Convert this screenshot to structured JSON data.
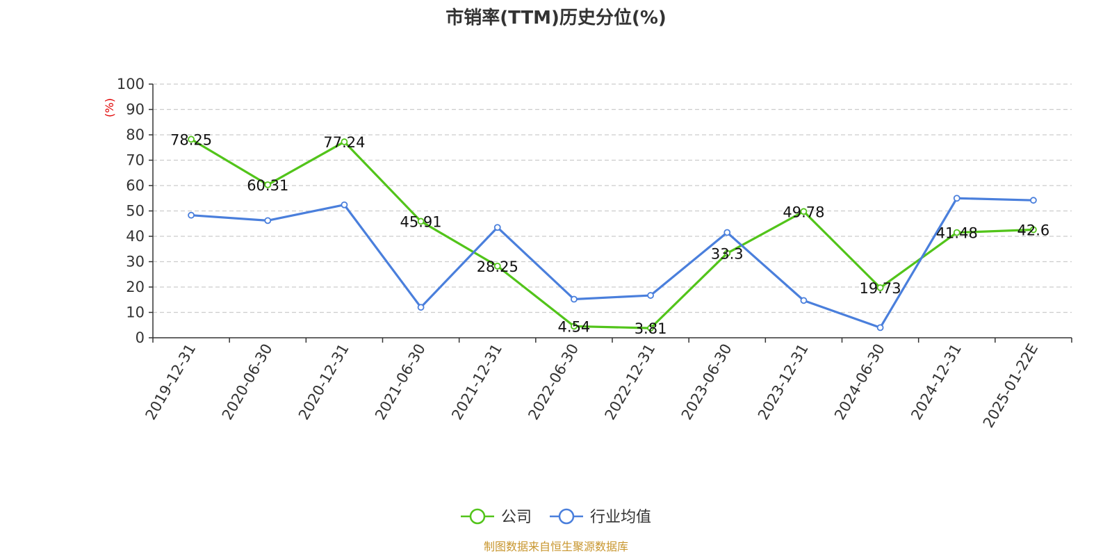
{
  "chart_data": {
    "type": "line",
    "title": "市销率(TTM)历史分位(%)",
    "y_unit": "(%)",
    "ylim": [
      0,
      100
    ],
    "y_ticks": [
      0,
      10,
      20,
      30,
      40,
      50,
      60,
      70,
      80,
      90,
      100
    ],
    "grid": true,
    "legend_position": "bottom",
    "categories": [
      "2019-12-31",
      "2020-06-30",
      "2020-12-31",
      "2021-06-30",
      "2021-12-31",
      "2022-06-30",
      "2022-12-31",
      "2023-06-30",
      "2023-12-31",
      "2024-06-30",
      "2024-12-31",
      "2025-01-22E"
    ],
    "series": [
      {
        "name": "公司",
        "color": "#52c41a",
        "values": [
          78.25,
          60.31,
          77.24,
          45.91,
          28.25,
          4.54,
          3.81,
          33.3,
          49.78,
          19.73,
          41.48,
          42.6
        ],
        "labels": [
          "78.25",
          "60.31",
          "77.24",
          "45.91",
          "28.25",
          "4.54",
          "3.81",
          "33.3",
          "49.78",
          "19.73",
          "41.48",
          "42.6"
        ]
      },
      {
        "name": "行业均值",
        "color": "#4a7fdc",
        "values": [
          48.3,
          46.2,
          52.4,
          12.0,
          43.5,
          15.2,
          16.7,
          41.5,
          14.7,
          4.0,
          55.0,
          54.2
        ]
      }
    ],
    "source": "制图数据来自恒生聚源数据库"
  }
}
